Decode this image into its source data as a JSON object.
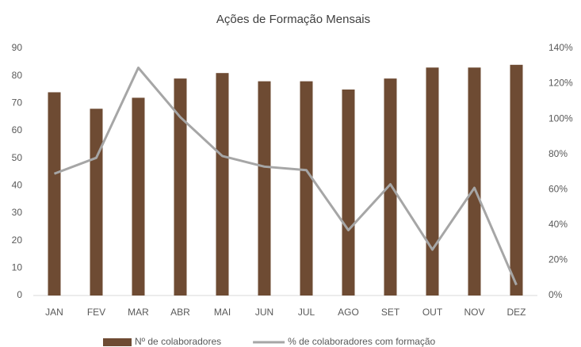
{
  "chart_data": {
    "type": "bar",
    "title": "Ações de Formação Mensais",
    "categories": [
      "JAN",
      "FEV",
      "MAR",
      "ABR",
      "MAI",
      "JUN",
      "JUL",
      "AGO",
      "SET",
      "OUT",
      "NOV",
      "DEZ"
    ],
    "series": [
      {
        "name": "Nº de colaboradores",
        "type": "bar",
        "color": "#6e4b33",
        "values": [
          74,
          68,
          72,
          79,
          81,
          78,
          78,
          75,
          79,
          83,
          83,
          84
        ]
      },
      {
        "name": "% de colaboradores com formação",
        "type": "line",
        "axis": "y2",
        "color": "#a6a6a6",
        "values": [
          69,
          78,
          129,
          101,
          79,
          73,
          71,
          37,
          63,
          26,
          61,
          6
        ]
      }
    ],
    "ylim": [
      0,
      90
    ],
    "yticks": [
      0,
      10,
      20,
      30,
      40,
      50,
      60,
      70,
      80,
      90
    ],
    "y2lim": [
      0,
      140
    ],
    "y2ticks": [
      {
        "value": 0,
        "label": "0%"
      },
      {
        "value": 20,
        "label": "20%"
      },
      {
        "value": 40,
        "label": "40%"
      },
      {
        "value": 60,
        "label": "60%"
      },
      {
        "value": 80,
        "label": "80%"
      },
      {
        "value": 100,
        "label": "100%"
      },
      {
        "value": 120,
        "label": "120%"
      },
      {
        "value": 140,
        "label": "140%"
      }
    ],
    "grid": false,
    "legend": "bottom"
  }
}
